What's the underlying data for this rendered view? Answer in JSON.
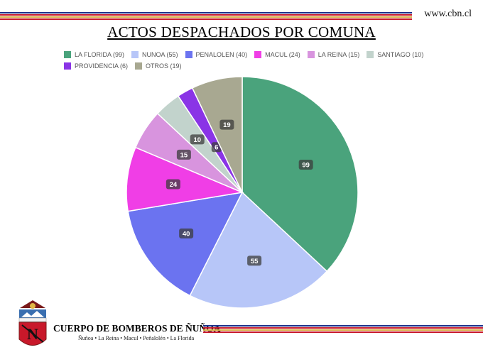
{
  "header": {
    "site": "www.cbn.cl",
    "title": "ACTOS DESPACHADOS POR COMUNA"
  },
  "footer": {
    "org_name": "CUERPO DE BOMBEROS DE ÑUÑOA",
    "org_sub": "Ñuñoa • La Reina • Macul • Peñalolén • La Florida"
  },
  "chart_data": {
    "type": "pie",
    "title": "ACTOS DESPACHADOS POR COMUNA",
    "legend_position": "top",
    "slices": [
      {
        "label": "LA FLORIDA",
        "legend": "LA FLORIDA (99)",
        "value": 99,
        "color": "#4aa37c"
      },
      {
        "label": "NUNOA",
        "legend": "NUNOA (55)",
        "value": 55,
        "color": "#b7c6f8"
      },
      {
        "label": "PENALOLEN",
        "legend": "PENALOLEN (40)",
        "value": 40,
        "color": "#6b73f0"
      },
      {
        "label": "MACUL",
        "legend": "MACUL (24)",
        "value": 24,
        "color": "#f03ee6"
      },
      {
        "label": "LA REINA",
        "legend": "LA REINA (15)",
        "value": 15,
        "color": "#d894de"
      },
      {
        "label": "SANTIAGO",
        "legend": "SANTIAGO (10)",
        "value": 10,
        "color": "#c2d3cc"
      },
      {
        "label": "PROVIDENCIA",
        "legend": "PROVIDENCIA (6)",
        "value": 6,
        "color": "#8a34e6"
      },
      {
        "label": "OTROS",
        "legend": "OTROS (19)",
        "value": 19,
        "color": "#a8a891"
      }
    ]
  }
}
